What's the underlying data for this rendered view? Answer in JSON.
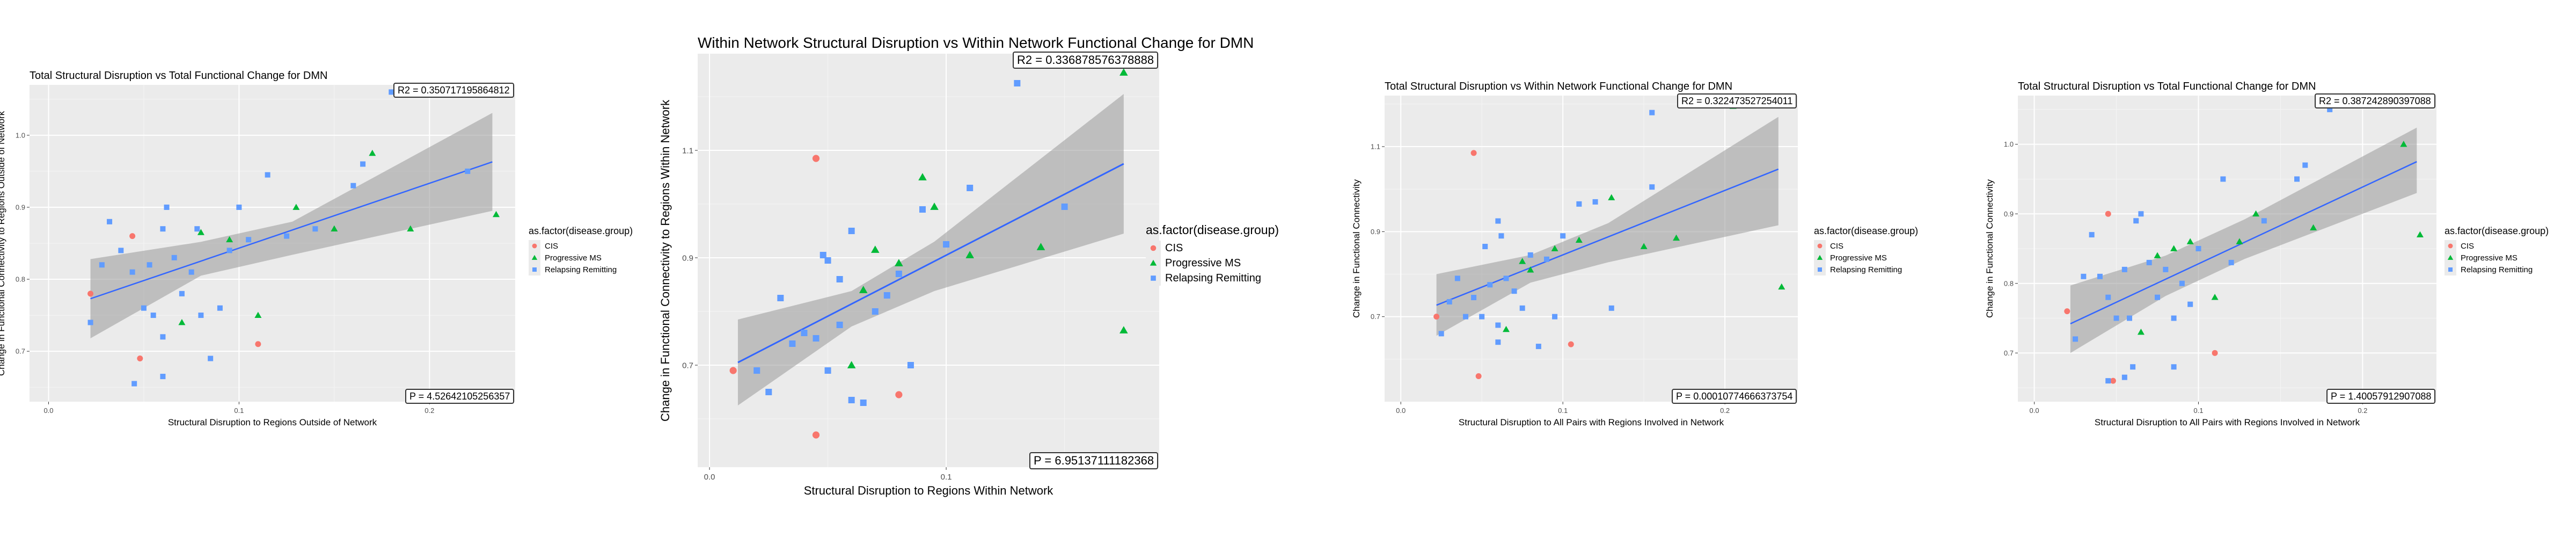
{
  "legend": {
    "title": "as.factor(disease.group)",
    "items": [
      {
        "label": "CIS",
        "color": "#F8766D",
        "shape": "circle"
      },
      {
        "label": "Progressive MS",
        "color": "#00BA38",
        "shape": "triangle"
      },
      {
        "label": "Relapsing Remitting",
        "color": "#619CFF",
        "shape": "square"
      }
    ]
  },
  "chart_data": [
    {
      "type": "scatter",
      "title": "Total Structural Disruption vs Total Functional Change for DMN",
      "xlabel": "Structural Disruption to Regions Outside of Network",
      "ylabel": "Change in Functional Connectivity to Regions Outside of Network",
      "xlim": [
        -0.01,
        0.245
      ],
      "ylim": [
        0.63,
        1.07
      ],
      "xticks": [
        0.0,
        0.1,
        0.2
      ],
      "xtick_labels": [
        "0.0",
        "0.1",
        "0.2"
      ],
      "yticks": [
        0.7,
        0.8,
        0.9,
        1.0
      ],
      "ytick_labels": [
        "0.7",
        "0.8",
        "0.9",
        "1.0"
      ],
      "r2_text": "R2 =  0.350717195864812",
      "p_text": "P =  4.52642105256357",
      "fit": {
        "x": [
          0.022,
          0.233
        ],
        "y": [
          0.773,
          0.963
        ]
      },
      "band": {
        "x": [
          0.022,
          0.08,
          0.128,
          0.233
        ],
        "lower": [
          0.718,
          0.805,
          0.834,
          0.895
        ],
        "upper": [
          0.828,
          0.852,
          0.88,
          1.031
        ]
      },
      "grid": true,
      "series": [
        {
          "name": "CIS",
          "color": "#F8766D",
          "shape": "circle",
          "points": [
            [
              0.022,
              0.78
            ],
            [
              0.044,
              0.86
            ],
            [
              0.048,
              0.69
            ],
            [
              0.11,
              0.71
            ]
          ]
        },
        {
          "name": "Progressive MS",
          "color": "#00BA38",
          "shape": "triangle",
          "points": [
            [
              0.07,
              0.74
            ],
            [
              0.08,
              0.865
            ],
            [
              0.095,
              0.855
            ],
            [
              0.11,
              0.75
            ],
            [
              0.13,
              0.9
            ],
            [
              0.15,
              0.87
            ],
            [
              0.17,
              0.975
            ],
            [
              0.19,
              0.87
            ],
            [
              0.235,
              0.89
            ]
          ]
        },
        {
          "name": "Relapsing Remitting",
          "color": "#619CFF",
          "shape": "square",
          "points": [
            [
              0.022,
              0.74
            ],
            [
              0.028,
              0.82
            ],
            [
              0.032,
              0.88
            ],
            [
              0.038,
              0.84
            ],
            [
              0.044,
              0.81
            ],
            [
              0.05,
              0.76
            ],
            [
              0.053,
              0.82
            ],
            [
              0.055,
              0.75
            ],
            [
              0.06,
              0.72
            ],
            [
              0.06,
              0.87
            ],
            [
              0.062,
              0.9
            ],
            [
              0.066,
              0.83
            ],
            [
              0.07,
              0.78
            ],
            [
              0.075,
              0.81
            ],
            [
              0.078,
              0.87
            ],
            [
              0.08,
              0.75
            ],
            [
              0.085,
              0.69
            ],
            [
              0.09,
              0.76
            ],
            [
              0.095,
              0.84
            ],
            [
              0.1,
              0.9
            ],
            [
              0.105,
              0.855
            ],
            [
              0.115,
              0.945
            ],
            [
              0.125,
              0.86
            ],
            [
              0.14,
              0.87
            ],
            [
              0.16,
              0.93
            ],
            [
              0.165,
              0.96
            ],
            [
              0.18,
              1.06
            ],
            [
              0.22,
              0.95
            ],
            [
              0.045,
              0.655
            ],
            [
              0.06,
              0.665
            ]
          ]
        }
      ]
    },
    {
      "type": "scatter",
      "title": "Within Network Structural Disruption vs Within Network Functional Change for DMN",
      "xlabel": "Structural Disruption to Regions Within Network",
      "ylabel": "Change in Functional Connectivity to Regions Within Network",
      "xlim": [
        -0.005,
        0.19
      ],
      "ylim": [
        0.51,
        1.28
      ],
      "xticks": [
        0.0,
        0.1
      ],
      "xtick_labels": [
        "0.0",
        "0.1"
      ],
      "yticks": [
        0.7,
        0.9,
        1.1
      ],
      "ytick_labels": [
        "0.7",
        "0.9",
        "1.1"
      ],
      "r2_text": "R2 =  0.336878576378888",
      "p_text": "P =  6.95137111182368",
      "fit": {
        "x": [
          0.012,
          0.175
        ],
        "y": [
          0.705,
          1.075
        ]
      },
      "band": {
        "x": [
          0.012,
          0.06,
          0.095,
          0.175
        ],
        "lower": [
          0.625,
          0.772,
          0.838,
          0.945
        ],
        "upper": [
          0.785,
          0.838,
          0.93,
          1.205
        ]
      },
      "grid": true,
      "series": [
        {
          "name": "CIS",
          "color": "#F8766D",
          "shape": "circle",
          "points": [
            [
              0.01,
              0.69
            ],
            [
              0.045,
              1.085
            ],
            [
              0.045,
              0.57
            ],
            [
              0.08,
              0.645
            ]
          ]
        },
        {
          "name": "Progressive MS",
          "color": "#00BA38",
          "shape": "triangle",
          "points": [
            [
              0.06,
              0.7
            ],
            [
              0.065,
              0.84
            ],
            [
              0.07,
              0.915
            ],
            [
              0.08,
              0.89
            ],
            [
              0.09,
              1.05
            ],
            [
              0.095,
              0.995
            ],
            [
              0.11,
              0.905
            ],
            [
              0.14,
              0.92
            ],
            [
              0.175,
              1.245
            ],
            [
              0.175,
              0.765
            ]
          ]
        },
        {
          "name": "Relapsing Remitting",
          "color": "#619CFF",
          "shape": "square",
          "points": [
            [
              0.02,
              0.69
            ],
            [
              0.025,
              0.65
            ],
            [
              0.03,
              0.825
            ],
            [
              0.035,
              0.74
            ],
            [
              0.04,
              0.76
            ],
            [
              0.045,
              0.75
            ],
            [
              0.048,
              0.905
            ],
            [
              0.05,
              0.69
            ],
            [
              0.05,
              0.895
            ],
            [
              0.055,
              0.86
            ],
            [
              0.06,
              0.95
            ],
            [
              0.06,
              0.635
            ],
            [
              0.065,
              0.63
            ],
            [
              0.07,
              0.8
            ],
            [
              0.075,
              0.83
            ],
            [
              0.08,
              0.87
            ],
            [
              0.085,
              0.7
            ],
            [
              0.09,
              0.99
            ],
            [
              0.1,
              0.925
            ],
            [
              0.11,
              1.03
            ],
            [
              0.13,
              1.225
            ],
            [
              0.15,
              0.995
            ],
            [
              0.055,
              0.775
            ]
          ]
        }
      ]
    },
    {
      "type": "scatter",
      "title": "Total Structural Disruption vs Within Network Functional Change for DMN",
      "xlabel": "Structural Disruption to All Pairs with Regions Involved in Network",
      "ylabel": "Change in Functional Connectivity",
      "xlim": [
        -0.01,
        0.245
      ],
      "ylim": [
        0.5,
        1.22
      ],
      "xticks": [
        0.0,
        0.1,
        0.2
      ],
      "xtick_labels": [
        "0.0",
        "0.1",
        "0.2"
      ],
      "yticks": [
        0.7,
        0.9,
        1.1
      ],
      "ytick_labels": [
        "0.7",
        "0.9",
        "1.1"
      ],
      "r2_text": "R2 =  0.322473527254011",
      "p_text": "P =  0.00010774666373754",
      "fit": {
        "x": [
          0.022,
          0.233
        ],
        "y": [
          0.727,
          1.047
        ]
      },
      "band": {
        "x": [
          0.022,
          0.08,
          0.128,
          0.233
        ],
        "lower": [
          0.655,
          0.78,
          0.828,
          0.915
        ],
        "upper": [
          0.8,
          0.845,
          0.92,
          1.17
        ]
      },
      "grid": true,
      "series": [
        {
          "name": "CIS",
          "color": "#F8766D",
          "shape": "circle",
          "points": [
            [
              0.022,
              0.7
            ],
            [
              0.045,
              1.085
            ],
            [
              0.048,
              0.56
            ],
            [
              0.105,
              0.635
            ]
          ]
        },
        {
          "name": "Progressive MS",
          "color": "#00BA38",
          "shape": "triangle",
          "points": [
            [
              0.065,
              0.67
            ],
            [
              0.075,
              0.83
            ],
            [
              0.08,
              0.81
            ],
            [
              0.095,
              0.86
            ],
            [
              0.11,
              0.88
            ],
            [
              0.13,
              0.98
            ],
            [
              0.15,
              0.865
            ],
            [
              0.17,
              0.885
            ],
            [
              0.205,
              1.195
            ],
            [
              0.235,
              0.77
            ]
          ]
        },
        {
          "name": "Relapsing Remitting",
          "color": "#619CFF",
          "shape": "square",
          "points": [
            [
              0.025,
              0.66
            ],
            [
              0.03,
              0.735
            ],
            [
              0.035,
              0.79
            ],
            [
              0.04,
              0.7
            ],
            [
              0.045,
              0.745
            ],
            [
              0.05,
              0.7
            ],
            [
              0.052,
              0.865
            ],
            [
              0.055,
              0.775
            ],
            [
              0.06,
              0.68
            ],
            [
              0.06,
              0.925
            ],
            [
              0.062,
              0.89
            ],
            [
              0.065,
              0.79
            ],
            [
              0.07,
              0.76
            ],
            [
              0.075,
              0.72
            ],
            [
              0.08,
              0.845
            ],
            [
              0.085,
              0.63
            ],
            [
              0.09,
              0.835
            ],
            [
              0.095,
              0.7
            ],
            [
              0.1,
              0.89
            ],
            [
              0.11,
              0.965
            ],
            [
              0.12,
              0.97
            ],
            [
              0.13,
              0.72
            ],
            [
              0.155,
              1.18
            ],
            [
              0.155,
              1.005
            ],
            [
              0.06,
              0.64
            ]
          ]
        }
      ]
    },
    {
      "type": "scatter",
      "title": "Total Structural Disruption vs Total Functional Change for DMN",
      "xlabel": "Structural Disruption to All Pairs with Regions Involved in Network",
      "ylabel": "Change in Functional Connectivity",
      "xlim": [
        -0.01,
        0.245
      ],
      "ylim": [
        0.63,
        1.07
      ],
      "xticks": [
        0.0,
        0.1,
        0.2
      ],
      "xtick_labels": [
        "0.0",
        "0.1",
        "0.2"
      ],
      "yticks": [
        0.7,
        0.8,
        0.9,
        1.0
      ],
      "ytick_labels": [
        "0.7",
        "0.8",
        "0.9",
        "1.0"
      ],
      "r2_text": "R2 =  0.387242890397088",
      "p_text": "P =  1.40057912907088",
      "fit": {
        "x": [
          0.022,
          0.233
        ],
        "y": [
          0.742,
          0.975
        ]
      },
      "band": {
        "x": [
          0.022,
          0.08,
          0.128,
          0.233
        ],
        "lower": [
          0.7,
          0.782,
          0.835,
          0.93
        ],
        "upper": [
          0.797,
          0.84,
          0.892,
          1.024
        ]
      },
      "grid": true,
      "series": [
        {
          "name": "CIS",
          "color": "#F8766D",
          "shape": "circle",
          "points": [
            [
              0.02,
              0.76
            ],
            [
              0.045,
              0.9
            ],
            [
              0.048,
              0.66
            ],
            [
              0.11,
              0.7
            ]
          ]
        },
        {
          "name": "Progressive MS",
          "color": "#00BA38",
          "shape": "triangle",
          "points": [
            [
              0.065,
              0.73
            ],
            [
              0.075,
              0.84
            ],
            [
              0.085,
              0.85
            ],
            [
              0.095,
              0.86
            ],
            [
              0.11,
              0.78
            ],
            [
              0.125,
              0.86
            ],
            [
              0.135,
              0.9
            ],
            [
              0.17,
              0.88
            ],
            [
              0.225,
              1.0
            ],
            [
              0.235,
              0.87
            ]
          ]
        },
        {
          "name": "Relapsing Remitting",
          "color": "#619CFF",
          "shape": "square",
          "points": [
            [
              0.025,
              0.72
            ],
            [
              0.03,
              0.81
            ],
            [
              0.035,
              0.87
            ],
            [
              0.04,
              0.81
            ],
            [
              0.045,
              0.78
            ],
            [
              0.05,
              0.75
            ],
            [
              0.055,
              0.82
            ],
            [
              0.058,
              0.75
            ],
            [
              0.06,
              0.68
            ],
            [
              0.062,
              0.89
            ],
            [
              0.065,
              0.9
            ],
            [
              0.07,
              0.83
            ],
            [
              0.075,
              0.78
            ],
            [
              0.08,
              0.82
            ],
            [
              0.085,
              0.75
            ],
            [
              0.085,
              0.68
            ],
            [
              0.09,
              0.8
            ],
            [
              0.095,
              0.77
            ],
            [
              0.1,
              0.85
            ],
            [
              0.115,
              0.95
            ],
            [
              0.12,
              0.83
            ],
            [
              0.14,
              0.89
            ],
            [
              0.16,
              0.95
            ],
            [
              0.165,
              0.97
            ],
            [
              0.18,
              1.05
            ],
            [
              0.055,
              0.665
            ],
            [
              0.045,
              0.66
            ]
          ]
        }
      ]
    }
  ]
}
